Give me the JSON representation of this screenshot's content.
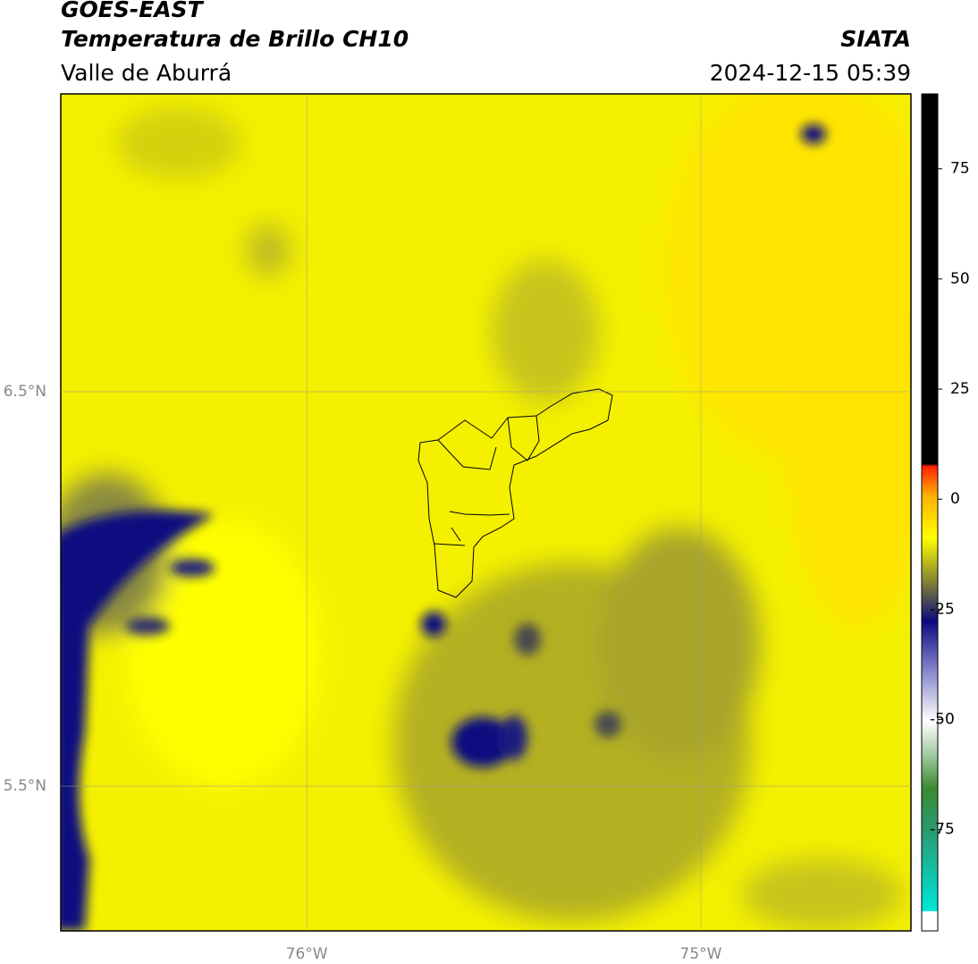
{
  "header": {
    "title": "GOES-EAST",
    "subtitle": "Temperatura de Brillo CH10",
    "region": "Valle de Aburrá",
    "source": "SIATA",
    "timestamp": "2024-12-15 05:39"
  },
  "map": {
    "lonlim": [
      -76.624,
      -74.467
    ],
    "latlim": [
      5.133,
      7.255
    ],
    "lonticks": [
      {
        "value": -76,
        "label": "76°W"
      },
      {
        "value": -75,
        "label": "75°W"
      }
    ],
    "latticks": [
      {
        "value": 6.5,
        "label": "6.5°N"
      },
      {
        "value": 5.5,
        "label": "5.5°N"
      }
    ],
    "grid": true
  },
  "colorbar": {
    "lim": [
      -98,
      92
    ],
    "ticks": [
      75,
      50,
      25,
      0,
      -25,
      -50,
      -75
    ]
  }
}
